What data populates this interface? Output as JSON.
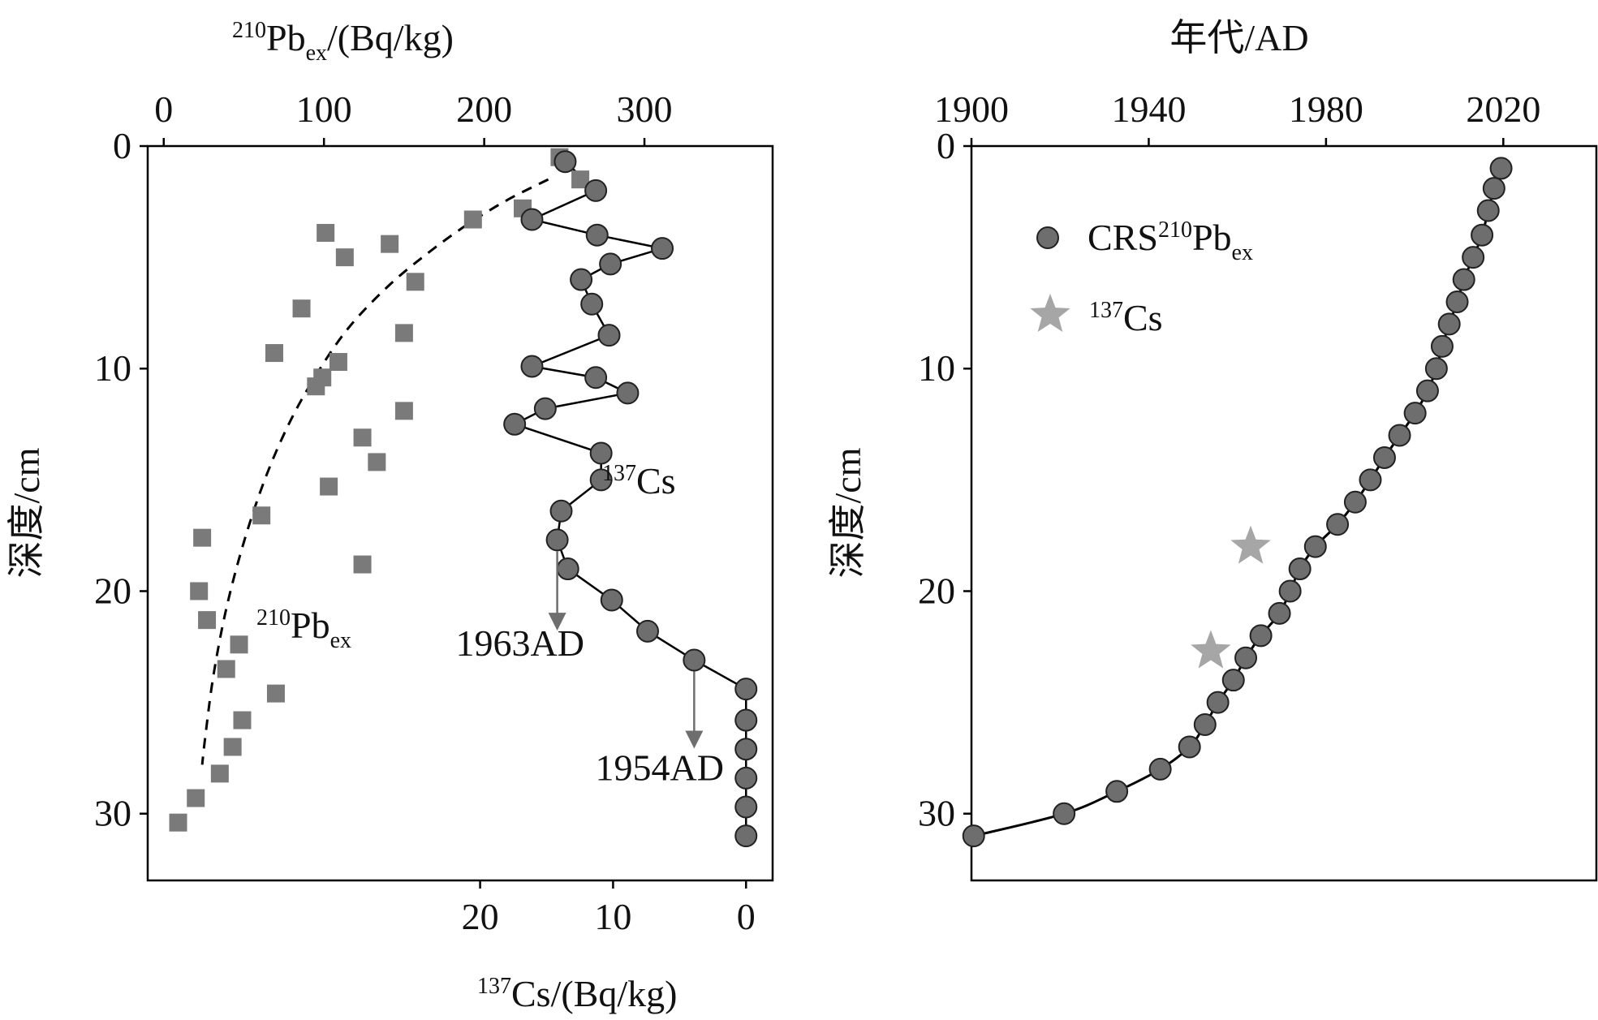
{
  "colors": {
    "pb_marker": "#7a7a7a",
    "cs_marker": "#6e6e6e",
    "crs_marker": "#6e6e6e",
    "star": "#a6a6a6",
    "arrow": "#6e6e6e",
    "line": "#000000"
  },
  "chart_data": [
    {
      "type": "scatter",
      "panel": "left",
      "y_axis": {
        "label_main": "深度/cm",
        "range": [
          0,
          33
        ],
        "inverted": true,
        "ticks": [
          "0",
          "10",
          "20",
          "30"
        ],
        "tick_values": [
          0,
          10,
          20,
          30
        ]
      },
      "top_axis": {
        "label_sup": "210",
        "label_base": "Pb",
        "label_sub": "ex",
        "label_rest": "/(Bq/kg)",
        "range": [
          -10,
          380
        ],
        "ticks": [
          "0",
          "100",
          "200",
          "300"
        ],
        "tick_values": [
          0,
          100,
          200,
          300
        ]
      },
      "bottom_axis": {
        "label_sup": "137",
        "label_rest": "Cs/(Bq/kg)",
        "range": [
          45,
          -2
        ],
        "ticks": [
          "20",
          "10",
          "0"
        ],
        "tick_values": [
          20,
          10,
          0
        ]
      },
      "series": [
        {
          "name": "210Pbex",
          "label_sup": "210",
          "label_base": "Pb",
          "label_sub": "ex",
          "marker": "square",
          "points": [
            [
              247,
              0.5
            ],
            [
              260,
              1.5
            ],
            [
              224,
              2.8
            ],
            [
              193,
              3.3
            ],
            [
              101,
              3.9
            ],
            [
              141,
              4.4
            ],
            [
              113,
              5.0
            ],
            [
              157,
              6.1
            ],
            [
              86,
              7.3
            ],
            [
              150,
              8.4
            ],
            [
              69,
              9.3
            ],
            [
              109,
              9.7
            ],
            [
              99,
              10.4
            ],
            [
              95,
              10.8
            ],
            [
              150,
              11.9
            ],
            [
              124,
              13.1
            ],
            [
              133,
              14.2
            ],
            [
              103,
              15.3
            ],
            [
              61,
              16.6
            ],
            [
              24,
              17.6
            ],
            [
              124,
              18.8
            ],
            [
              22,
              20.0
            ],
            [
              27,
              21.3
            ],
            [
              47,
              22.4
            ],
            [
              39,
              23.5
            ],
            [
              70,
              24.6
            ],
            [
              49,
              25.8
            ],
            [
              43,
              27.0
            ],
            [
              35,
              28.2
            ],
            [
              20,
              29.3
            ],
            [
              9,
              30.4
            ]
          ]
        },
        {
          "name": "137Cs",
          "label_sup": "137",
          "label_base": "Cs",
          "marker": "circle",
          "points": [
            [
              13.6,
              0.7
            ],
            [
              11.3,
              2.0
            ],
            [
              16.1,
              3.3
            ],
            [
              11.2,
              4.0
            ],
            [
              6.3,
              4.6
            ],
            [
              10.2,
              5.3
            ],
            [
              12.4,
              6.0
            ],
            [
              11.6,
              7.1
            ],
            [
              10.3,
              8.5
            ],
            [
              16.1,
              9.9
            ],
            [
              11.3,
              10.4
            ],
            [
              8.9,
              11.1
            ],
            [
              15.1,
              11.8
            ],
            [
              17.4,
              12.5
            ],
            [
              10.9,
              13.8
            ],
            [
              10.9,
              15.0
            ],
            [
              13.9,
              16.4
            ],
            [
              14.2,
              17.7
            ],
            [
              13.4,
              19.0
            ],
            [
              10.1,
              20.4
            ],
            [
              7.4,
              21.8
            ],
            [
              3.9,
              23.1
            ],
            [
              0,
              24.4
            ],
            [
              0,
              25.8
            ],
            [
              0,
              27.1
            ],
            [
              0,
              28.4
            ],
            [
              0,
              29.7
            ],
            [
              0,
              31.0
            ]
          ]
        }
      ],
      "fit_curve": {
        "style": "dashed",
        "points": [
          [
            240,
            1.5
          ],
          [
            215,
            2.4
          ],
          [
            190,
            3.5
          ],
          [
            165,
            4.8
          ],
          [
            140,
            6.3
          ],
          [
            115,
            8.2
          ],
          [
            95,
            10.3
          ],
          [
            78,
            12.5
          ],
          [
            63,
            15.0
          ],
          [
            50,
            17.8
          ],
          [
            39,
            20.8
          ],
          [
            31,
            23.8
          ],
          [
            26,
            26.5
          ],
          [
            24,
            27.8
          ]
        ]
      },
      "annotations": [
        {
          "text": "1963AD",
          "arrow_x": 14.2,
          "arrow_from": 17.7,
          "arrow_to": 21.7,
          "text_x": 17.0,
          "text_y": 22.9
        },
        {
          "text": "1954AD",
          "arrow_x": 3.9,
          "arrow_from": 23.1,
          "arrow_to": 27.0,
          "text_x": 6.5,
          "text_y": 28.5
        }
      ]
    },
    {
      "type": "line",
      "panel": "right",
      "y_axis": {
        "label_main": "深度/cm",
        "range": [
          0,
          33
        ],
        "inverted": true,
        "ticks": [
          "0",
          "10",
          "20",
          "30"
        ],
        "tick_values": [
          0,
          10,
          20,
          30
        ]
      },
      "top_axis": {
        "label": "年代/AD",
        "range": [
          1900,
          2041
        ],
        "ticks": [
          "1900",
          "1940",
          "1980",
          "2020"
        ],
        "tick_values": [
          1900,
          1940,
          1980,
          2020
        ]
      },
      "series": [
        {
          "name": "CRS210Pbex",
          "marker": "circle",
          "points": [
            [
              2019.5,
              1.0
            ],
            [
              2017.9,
              1.9
            ],
            [
              2016.6,
              2.9
            ],
            [
              2015.2,
              4.0
            ],
            [
              2013.2,
              5.0
            ],
            [
              2011.1,
              6.0
            ],
            [
              2009.6,
              7.0
            ],
            [
              2007.8,
              8.0
            ],
            [
              2006.2,
              9.0
            ],
            [
              2004.9,
              10.0
            ],
            [
              2002.9,
              11.0
            ],
            [
              2000.1,
              12.0
            ],
            [
              1996.6,
              13.0
            ],
            [
              1993.2,
              14.0
            ],
            [
              1990.0,
              15.0
            ],
            [
              1986.6,
              16.0
            ],
            [
              1982.6,
              17.0
            ],
            [
              1977.6,
              18.0
            ],
            [
              1974.1,
              19.0
            ],
            [
              1971.9,
              20.0
            ],
            [
              1969.5,
              21.0
            ],
            [
              1965.3,
              22.0
            ],
            [
              1961.9,
              23.0
            ],
            [
              1959.1,
              24.0
            ],
            [
              1955.6,
              25.0
            ],
            [
              1952.7,
              26.0
            ],
            [
              1949.2,
              27.0
            ],
            [
              1942.6,
              28.0
            ],
            [
              1932.8,
              29.0
            ],
            [
              1920.9,
              30.0
            ],
            [
              1900.5,
              31.0
            ]
          ]
        },
        {
          "name": "137Cs",
          "marker": "star",
          "points": [
            [
              1963,
              18.0
            ],
            [
              1954,
              22.7
            ]
          ]
        }
      ],
      "legend": {
        "position": "top-left",
        "crs": {
          "base": "CRS",
          "sup": "210",
          "base2": "Pb",
          "sub": "ex"
        },
        "cs": {
          "sup": "137",
          "base": "Cs"
        }
      }
    }
  ],
  "labels": {
    "left_cs_label": {
      "sup": "137",
      "base": "Cs"
    },
    "left_pb_label": {
      "sup": "210",
      "base": "Pb",
      "sub": "ex"
    }
  }
}
